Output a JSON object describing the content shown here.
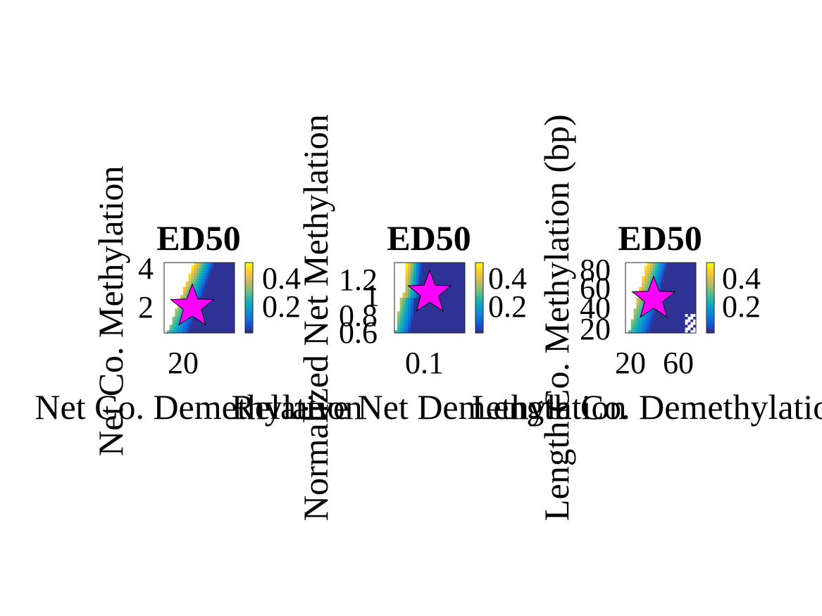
{
  "chart_data": [
    {
      "type": "heatmap",
      "title": "ED50",
      "xlabel": "Net Co. Demethylation",
      "ylabel": "Net Co. Methylation",
      "x_ticks": [
        "20"
      ],
      "y_ticks": [
        "4",
        "2"
      ],
      "colorbar": {
        "ticks": [
          "0.4",
          "0.2"
        ],
        "range": [
          0.05,
          0.5
        ]
      },
      "xlim": [
        5,
        45
      ],
      "ylim": [
        0.5,
        4.5
      ],
      "star": {
        "x": 21,
        "y": 2
      }
    },
    {
      "type": "heatmap",
      "title": "ED50",
      "xlabel": "Relative Net Demethylation",
      "ylabel": "Normalized Net Methylation",
      "x_ticks": [
        "0.1"
      ],
      "y_ticks": [
        "1.2",
        "1",
        "0.8",
        "0.6"
      ],
      "colorbar": {
        "ticks": [
          "0.4",
          "0.2"
        ],
        "range": [
          0.05,
          0.5
        ]
      },
      "xlim": [
        0.05,
        0.15
      ],
      "ylim": [
        0.6,
        1.3
      ],
      "star": {
        "x": 0.1,
        "y": 1.0
      }
    },
    {
      "type": "heatmap",
      "title": "ED50",
      "xlabel": "Length Co. Demethylation",
      "ylabel": "Length Co. Methylation (bp)",
      "x_ticks": [
        "20",
        "60"
      ],
      "y_ticks": [
        "80",
        "60",
        "40",
        "20"
      ],
      "colorbar": {
        "ticks": [
          "0.4",
          "0.2"
        ],
        "range": [
          0.05,
          0.5
        ]
      },
      "xlim": [
        10,
        80
      ],
      "ylim": [
        15,
        85
      ],
      "star": {
        "x": 38,
        "y": 49
      }
    }
  ],
  "colors": {
    "star_fill": "#ff00ff",
    "star_edge": "#000000",
    "parula": [
      "#352a87",
      "#0f5cdd",
      "#1481d6",
      "#06a4ca",
      "#2eb7a4",
      "#87bf77",
      "#d1bb59",
      "#fec832",
      "#f9fb0e"
    ]
  }
}
